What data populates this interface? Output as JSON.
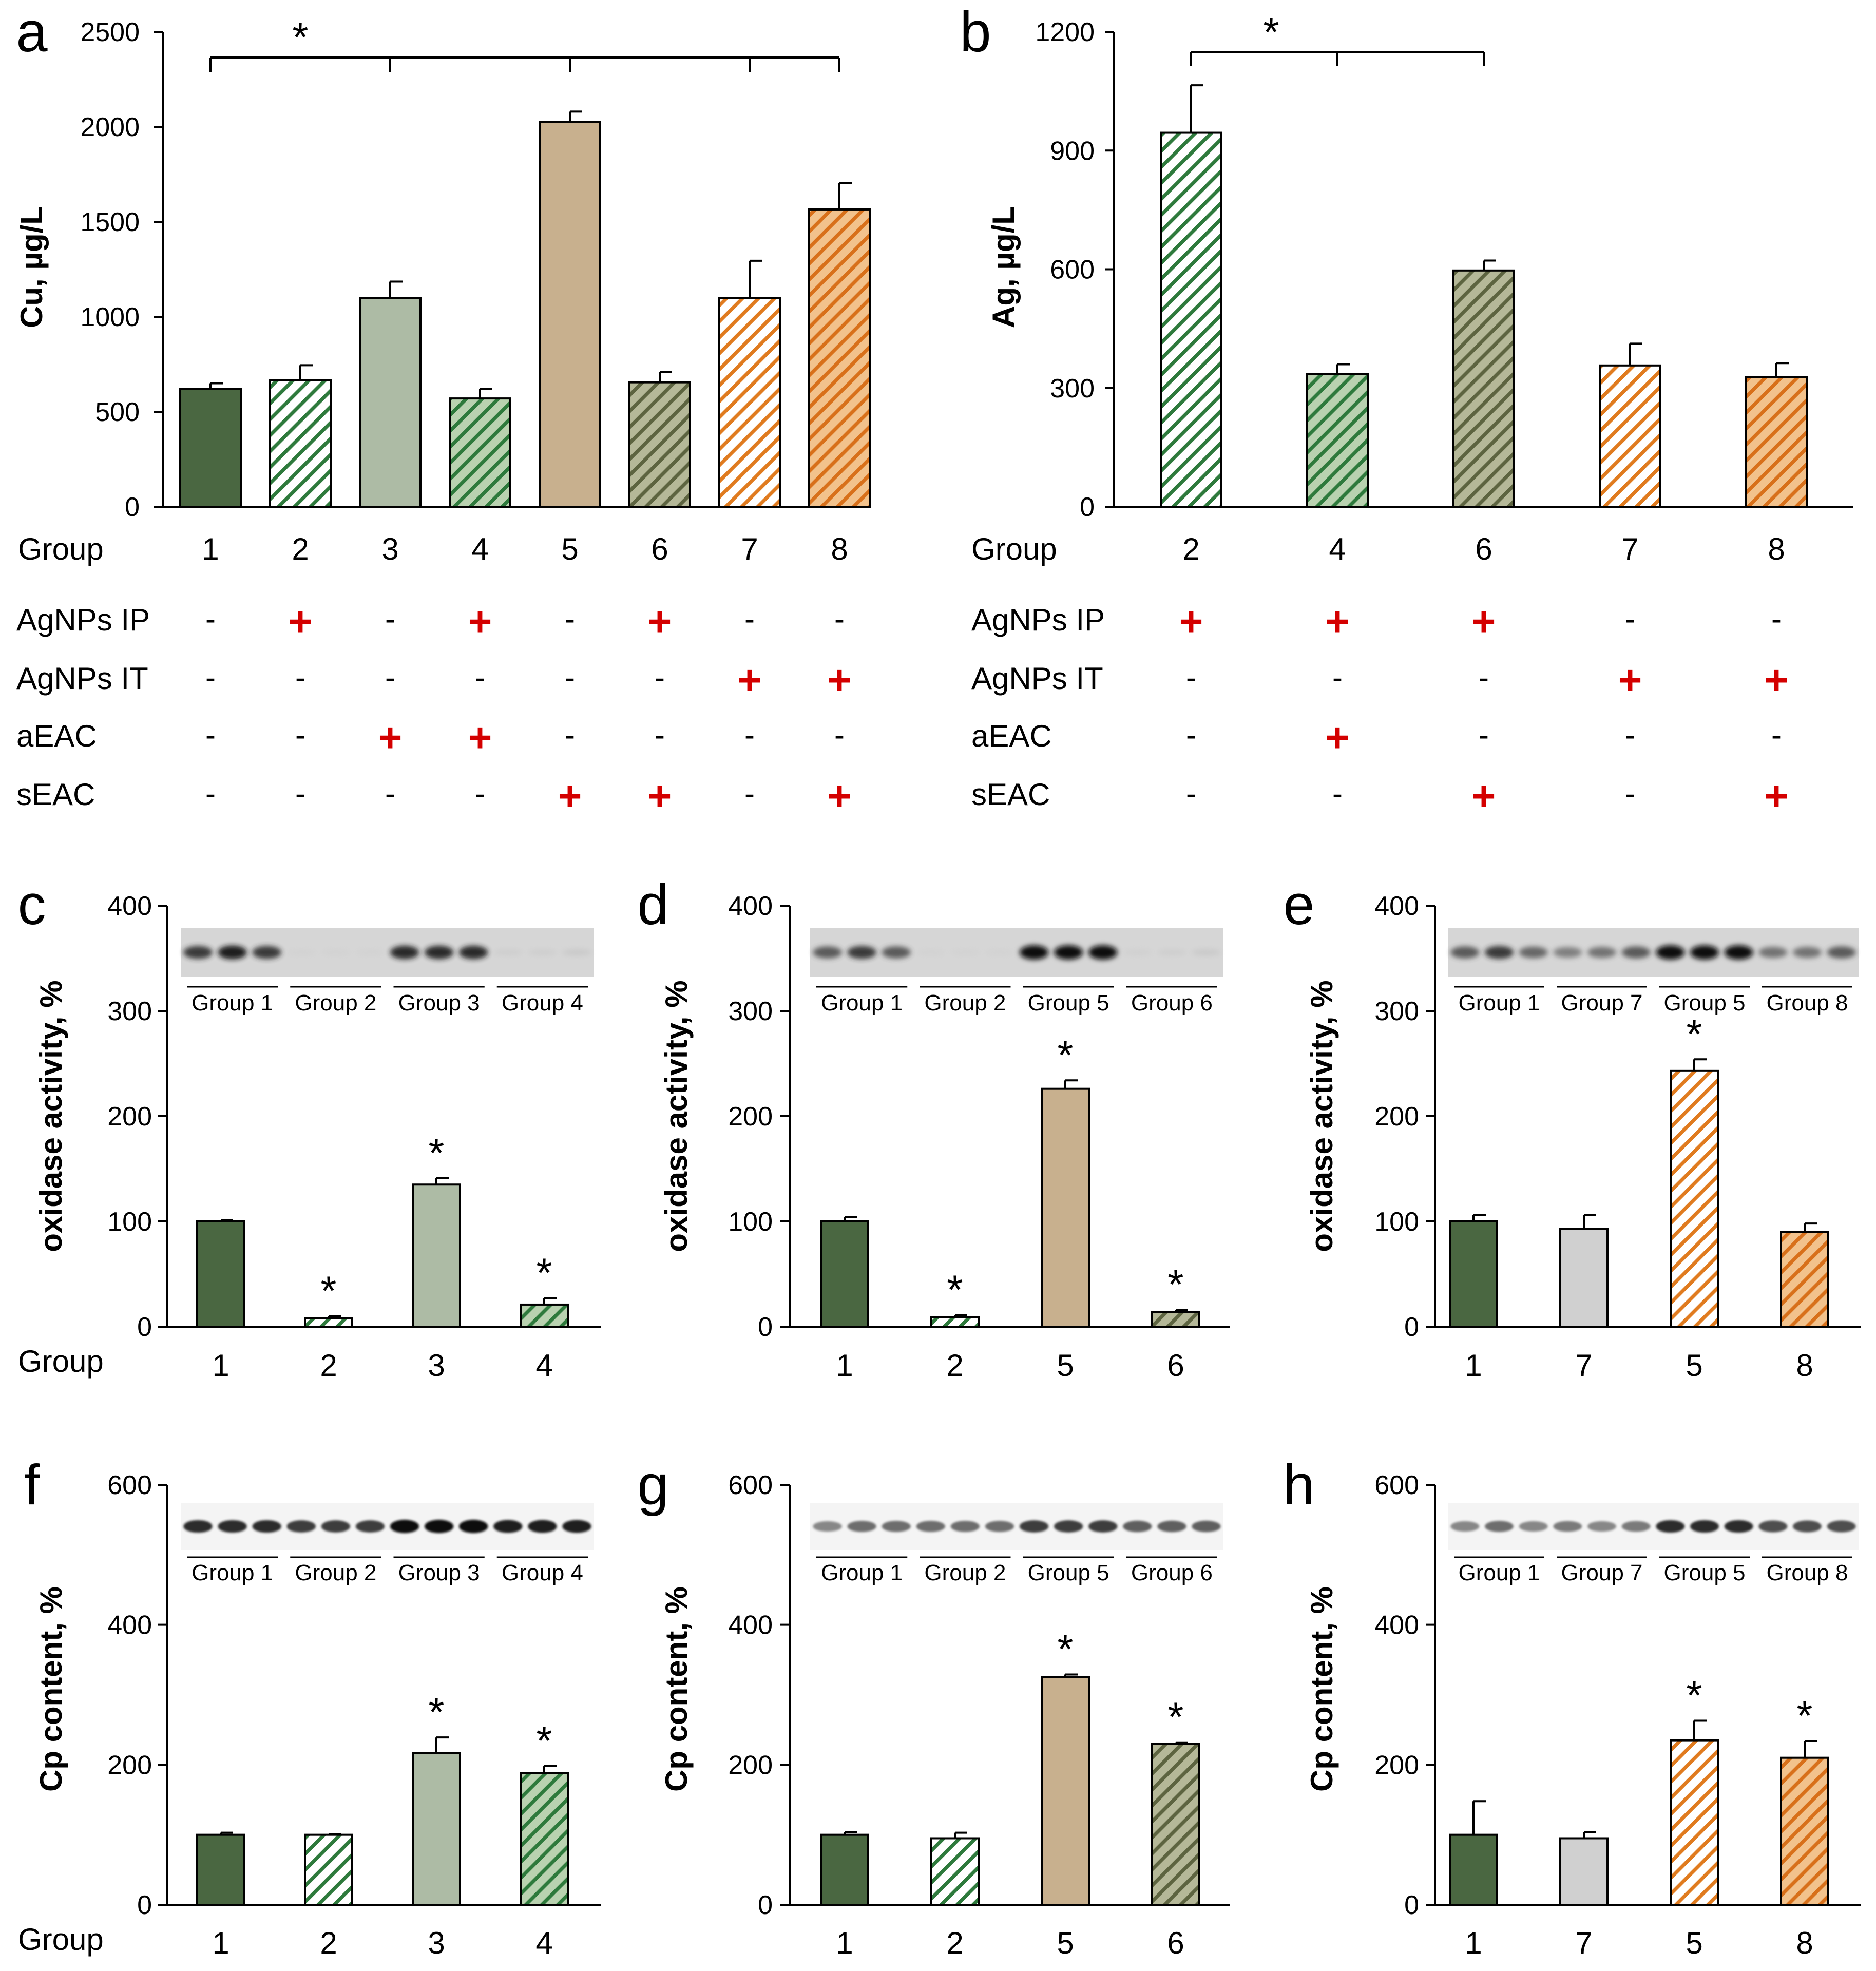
{
  "colors": {
    "dark_green": "#4a6741",
    "light_sage": "#adbba5",
    "tan": "#c8b08e",
    "hatch_green": "#2e7a3c",
    "hatch_green_bg_light": "#ffffff",
    "hatch_green_bg_mid": "#b9d2b0",
    "hatch_olive_bg": "#b5b898",
    "hatch_orange": "#e07b1f",
    "hatch_orange_bg_mid": "#f2c28c",
    "light_gray": "#d0d0d0",
    "red_mark": "#d40000",
    "axis": "#000000"
  },
  "chart_data": [
    {
      "id": "a",
      "panel_label": "a",
      "type": "bar",
      "xlabel": "Group",
      "ylabel": "Cu, µg/L",
      "ylim": [
        0,
        2500
      ],
      "yticks": [
        "0",
        "500",
        "1000",
        "1500",
        "2000",
        "2500"
      ],
      "categories": [
        "1",
        "2",
        "3",
        "4",
        "5",
        "6",
        "7",
        "8"
      ],
      "values": [
        620,
        665,
        1100,
        570,
        2025,
        655,
        1100,
        1565
      ],
      "errors": [
        30,
        80,
        85,
        50,
        55,
        55,
        195,
        140
      ],
      "styles": [
        "dark_green",
        "hatch_green_white",
        "light_sage",
        "hatch_green_mid",
        "tan",
        "hatch_olive",
        "hatch_orange_white",
        "hatch_orange_mid"
      ],
      "significance": {
        "label": "*",
        "bracket_groups": [
          "1",
          "3",
          "5",
          "7",
          "8"
        ]
      },
      "treatments": [
        {
          "label": "AgNPs IP",
          "marks": [
            "-",
            "+",
            "-",
            "+",
            "-",
            "+",
            "-",
            "-"
          ]
        },
        {
          "label": "AgNPs IT",
          "marks": [
            "-",
            "-",
            "-",
            "-",
            "-",
            "-",
            "+",
            "+"
          ]
        },
        {
          "label": "aEAC",
          "marks": [
            "-",
            "-",
            "+",
            "+",
            "-",
            "-",
            "-",
            "-"
          ]
        },
        {
          "label": "sEAC",
          "marks": [
            "-",
            "-",
            "-",
            "-",
            "+",
            "+",
            "-",
            "+"
          ]
        }
      ]
    },
    {
      "id": "b",
      "panel_label": "b",
      "type": "bar",
      "xlabel": "Group",
      "ylabel": "Ag, µg/L",
      "ylim": [
        0,
        1200
      ],
      "yticks": [
        "0",
        "300",
        "600",
        "900",
        "1200"
      ],
      "categories": [
        "2",
        "4",
        "6",
        "7",
        "8"
      ],
      "values": [
        945,
        335,
        597,
        357,
        328
      ],
      "errors": [
        120,
        25,
        25,
        55,
        35
      ],
      "styles": [
        "hatch_green_white",
        "hatch_green_mid",
        "hatch_olive",
        "hatch_orange_white",
        "hatch_orange_mid"
      ],
      "significance": {
        "label": "*",
        "bracket_groups": [
          "2",
          "4",
          "6"
        ]
      },
      "treatments": [
        {
          "label": "AgNPs IP",
          "marks": [
            "+",
            "+",
            "+",
            "-",
            "-"
          ]
        },
        {
          "label": "AgNPs IT",
          "marks": [
            "-",
            "-",
            "-",
            "+",
            "+"
          ]
        },
        {
          "label": "aEAC",
          "marks": [
            "-",
            "+",
            "-",
            "-",
            "-"
          ]
        },
        {
          "label": "sEAC",
          "marks": [
            "-",
            "-",
            "+",
            "-",
            "+"
          ]
        }
      ]
    },
    {
      "id": "c",
      "panel_label": "c",
      "type": "bar",
      "xlabel": "Group",
      "ylabel": "oxidase activity, %",
      "ylim": [
        0,
        400
      ],
      "yticks": [
        "0",
        "100",
        "200",
        "300",
        "400"
      ],
      "categories": [
        "1",
        "2",
        "3",
        "4"
      ],
      "values": [
        100,
        8,
        135,
        21
      ],
      "errors": [
        1,
        2,
        6,
        6
      ],
      "styles": [
        "dark_green",
        "hatch_green_white",
        "light_sage",
        "hatch_green_mid"
      ],
      "stars": [
        "",
        "*",
        "*",
        "*"
      ],
      "blot_groups": [
        "Group 1",
        "Group 2",
        "Group 3",
        "Group 4"
      ],
      "blot_intensity": [
        0.85,
        0.95,
        0.85,
        0.05,
        0.05,
        0.05,
        0.9,
        0.9,
        0.9,
        0.1,
        0.1,
        0.15
      ]
    },
    {
      "id": "d",
      "panel_label": "d",
      "type": "bar",
      "xlabel": "",
      "ylabel": "oxidase activity, %",
      "ylim": [
        0,
        400
      ],
      "yticks": [
        "0",
        "100",
        "200",
        "300",
        "400"
      ],
      "categories": [
        "1",
        "2",
        "5",
        "6"
      ],
      "values": [
        100,
        9,
        226,
        14
      ],
      "errors": [
        4,
        2,
        8,
        2
      ],
      "styles": [
        "dark_green",
        "hatch_green_white",
        "tan",
        "hatch_olive"
      ],
      "stars": [
        "",
        "*",
        "*",
        "*"
      ],
      "blot_groups": [
        "Group 1",
        "Group 2",
        "Group 5",
        "Group 6"
      ],
      "blot_intensity": [
        0.75,
        0.85,
        0.75,
        0.05,
        0.05,
        0.05,
        1.0,
        1.0,
        1.0,
        0.08,
        0.1,
        0.15
      ]
    },
    {
      "id": "e",
      "panel_label": "e",
      "type": "bar",
      "xlabel": "",
      "ylabel": "oxidase activity, %",
      "ylim": [
        0,
        400
      ],
      "yticks": [
        "0",
        "100",
        "200",
        "300",
        "400"
      ],
      "categories": [
        "1",
        "7",
        "5",
        "8"
      ],
      "values": [
        100,
        93,
        243,
        90
      ],
      "errors": [
        6,
        13,
        11,
        8
      ],
      "styles": [
        "dark_green",
        "light_gray",
        "hatch_orange_white",
        "hatch_orange_mid"
      ],
      "stars": [
        "",
        "",
        "*",
        ""
      ],
      "blot_groups": [
        "Group 1",
        "Group 7",
        "Group 5",
        "Group 8"
      ],
      "blot_intensity": [
        0.75,
        0.85,
        0.7,
        0.6,
        0.65,
        0.75,
        1.0,
        1.0,
        1.0,
        0.65,
        0.65,
        0.75
      ]
    },
    {
      "id": "f",
      "panel_label": "f",
      "type": "bar",
      "xlabel": "Group",
      "ylabel": "Cp content, %",
      "ylim": [
        0,
        600
      ],
      "yticks": [
        "0",
        "200",
        "400",
        "600"
      ],
      "categories": [
        "1",
        "2",
        "3",
        "4"
      ],
      "values": [
        100,
        100,
        217,
        188
      ],
      "errors": [
        3,
        1,
        22,
        10
      ],
      "styles": [
        "dark_green",
        "hatch_green_white",
        "light_sage",
        "hatch_green_mid"
      ],
      "stars": [
        "",
        "",
        "*",
        "*"
      ],
      "blot_groups": [
        "Group 1",
        "Group 2",
        "Group 3",
        "Group 4"
      ],
      "blot_intensity": [
        0.9,
        0.9,
        0.9,
        0.85,
        0.85,
        0.85,
        1.0,
        1.0,
        1.0,
        0.95,
        0.95,
        0.95
      ]
    },
    {
      "id": "g",
      "panel_label": "g",
      "type": "bar",
      "xlabel": "",
      "ylabel": "Cp content, %",
      "ylim": [
        0,
        600
      ],
      "yticks": [
        "0",
        "200",
        "400",
        "600"
      ],
      "categories": [
        "1",
        "2",
        "5",
        "6"
      ],
      "values": [
        100,
        95,
        325,
        230
      ],
      "errors": [
        4,
        8,
        4,
        2
      ],
      "styles": [
        "dark_green",
        "hatch_green_white",
        "tan",
        "hatch_olive"
      ],
      "stars": [
        "",
        "",
        "*",
        "*"
      ],
      "blot_groups": [
        "Group 1",
        "Group 2",
        "Group 5",
        "Group 6"
      ],
      "blot_intensity": [
        0.6,
        0.7,
        0.7,
        0.7,
        0.7,
        0.7,
        0.85,
        0.85,
        0.85,
        0.75,
        0.75,
        0.75
      ]
    },
    {
      "id": "h",
      "panel_label": "h",
      "type": "bar",
      "xlabel": "",
      "ylabel": "Cp content, %",
      "ylim": [
        0,
        600
      ],
      "yticks": [
        "0",
        "200",
        "400",
        "600"
      ],
      "categories": [
        "1",
        "7",
        "5",
        "8"
      ],
      "values": [
        100,
        95,
        235,
        210
      ],
      "errors": [
        48,
        9,
        28,
        24
      ],
      "styles": [
        "dark_green",
        "light_gray",
        "hatch_orange_white",
        "hatch_orange_mid"
      ],
      "stars": [
        "",
        "",
        "*",
        "*"
      ],
      "blot_groups": [
        "Group 1",
        "Group 7",
        "Group 5",
        "Group 8"
      ],
      "blot_intensity": [
        0.6,
        0.7,
        0.6,
        0.65,
        0.6,
        0.65,
        0.9,
        0.9,
        0.9,
        0.8,
        0.8,
        0.8
      ]
    }
  ]
}
